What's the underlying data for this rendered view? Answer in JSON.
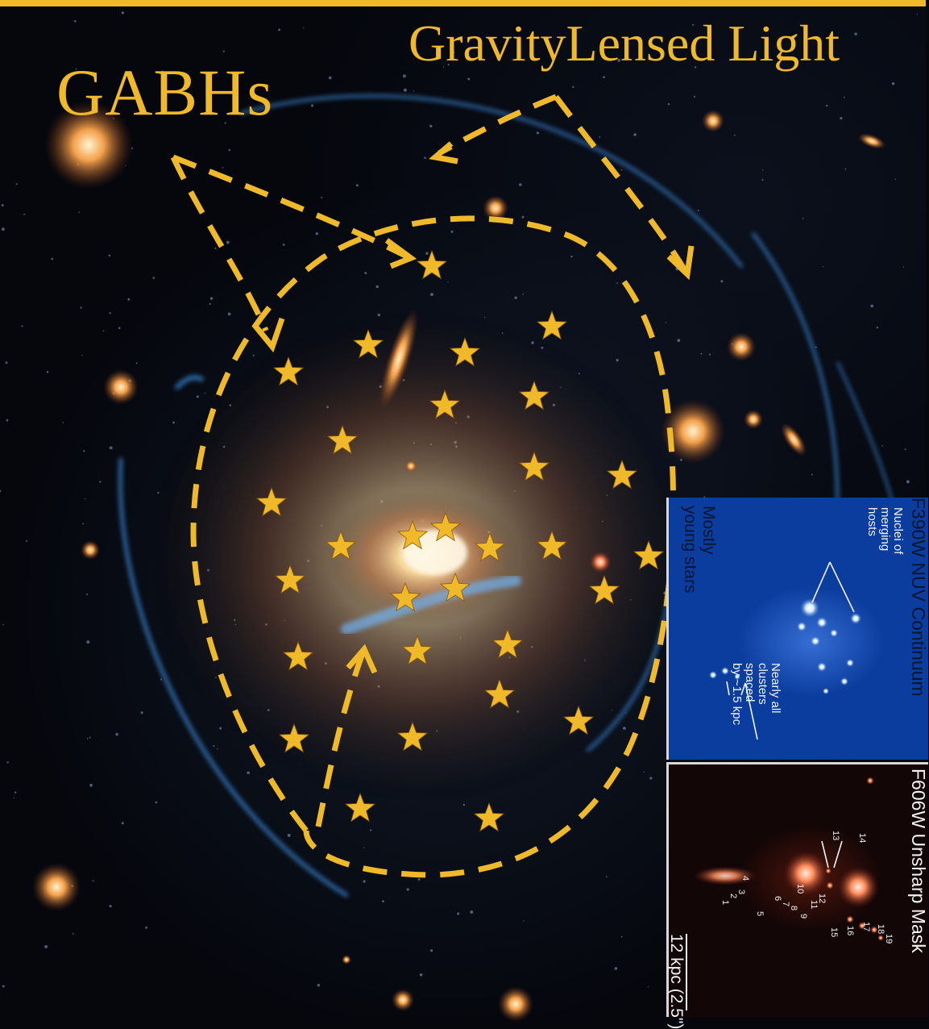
{
  "image": {
    "titles": {
      "left": "GABHs",
      "right": "GravityLensed Light"
    },
    "colors": {
      "annotation": "#f0b92a",
      "panel_nuv_bg": "#0b3d9e",
      "panel_mask_bg": "#120606",
      "panel_text_dark": "#0a1530",
      "panel_text_light": "#f2f2f2"
    },
    "panel_nuv": {
      "title": "F390W NUV Continuum",
      "label_nuclei": [
        "Nuclei of",
        "merging",
        "hosts"
      ],
      "label_young": [
        "Mostly",
        "young stars"
      ],
      "label_clusters": [
        "Nearly all",
        "clusters",
        "spaced",
        "by ~1.5 kpc"
      ]
    },
    "panel_mask": {
      "title": "F606W Unsharp Mask",
      "scale_label": "12 kpc (2.5\")",
      "cluster_numbers": [
        "1",
        "2",
        "3",
        "4",
        "5",
        "6",
        "7",
        "8",
        "9",
        "10",
        "11",
        "12",
        "13",
        "14",
        "15",
        "16",
        "17",
        "18",
        "19"
      ]
    }
  }
}
